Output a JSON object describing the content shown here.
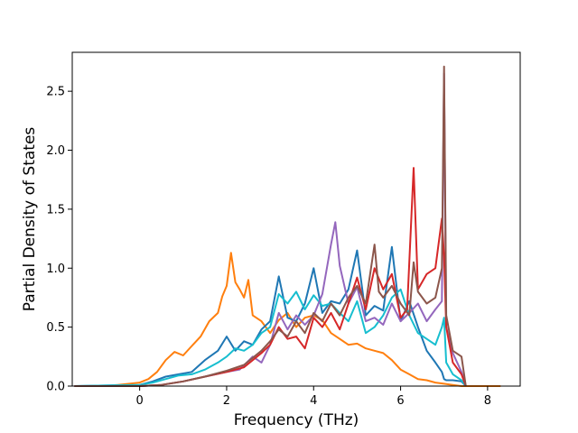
{
  "chart_data": {
    "type": "line",
    "xlabel": "Frequency (THz)",
    "ylabel": "Partial Density of States",
    "xlim": [
      -1.55,
      8.75
    ],
    "ylim": [
      0.0,
      2.83
    ],
    "xticks": [
      0,
      2,
      4,
      6,
      8
    ],
    "xtick_labels": [
      "0",
      "2",
      "4",
      "6",
      "8"
    ],
    "yticks": [
      0.0,
      0.5,
      1.0,
      1.5,
      2.0,
      2.5
    ],
    "ytick_labels": [
      "0.0",
      "0.5",
      "1.0",
      "1.5",
      "2.0",
      "2.5"
    ],
    "grid": false,
    "legend": "none",
    "series": [
      {
        "color": "#ff7f0e",
        "x": [
          -1.5,
          -0.8,
          -0.5,
          0.0,
          0.2,
          0.4,
          0.6,
          0.8,
          1.0,
          1.2,
          1.4,
          1.6,
          1.8,
          1.9,
          2.0,
          2.1,
          2.2,
          2.3,
          2.4,
          2.5,
          2.6,
          2.8,
          3.0,
          3.2,
          3.4,
          3.6,
          3.8,
          4.0,
          4.2,
          4.4,
          4.6,
          4.8,
          5.0,
          5.2,
          5.4,
          5.6,
          5.8,
          6.0,
          6.2,
          6.4,
          6.6,
          6.8,
          7.0,
          7.2,
          7.4,
          7.6,
          8.3
        ],
        "y": [
          0.0,
          0.0,
          0.01,
          0.03,
          0.06,
          0.12,
          0.22,
          0.29,
          0.26,
          0.34,
          0.42,
          0.55,
          0.62,
          0.76,
          0.85,
          1.13,
          0.88,
          0.82,
          0.75,
          0.9,
          0.6,
          0.55,
          0.45,
          0.56,
          0.62,
          0.5,
          0.58,
          0.6,
          0.56,
          0.45,
          0.4,
          0.35,
          0.36,
          0.32,
          0.3,
          0.28,
          0.22,
          0.14,
          0.1,
          0.06,
          0.05,
          0.03,
          0.02,
          0.01,
          0.0,
          0.0,
          0.0
        ]
      },
      {
        "color": "#1f77b4",
        "x": [
          -1.5,
          0.0,
          0.3,
          0.6,
          0.9,
          1.2,
          1.5,
          1.8,
          2.0,
          2.2,
          2.4,
          2.6,
          2.8,
          3.0,
          3.2,
          3.4,
          3.6,
          3.8,
          4.0,
          4.2,
          4.4,
          4.6,
          4.8,
          5.0,
          5.2,
          5.4,
          5.6,
          5.8,
          6.0,
          6.2,
          6.4,
          6.6,
          6.8,
          6.95,
          7.0,
          7.05,
          7.2,
          7.4,
          7.5
        ],
        "y": [
          0.0,
          0.01,
          0.04,
          0.08,
          0.1,
          0.12,
          0.22,
          0.3,
          0.42,
          0.3,
          0.38,
          0.35,
          0.48,
          0.55,
          0.93,
          0.58,
          0.55,
          0.7,
          1.0,
          0.62,
          0.72,
          0.7,
          0.82,
          1.15,
          0.6,
          0.68,
          0.64,
          1.18,
          0.55,
          0.72,
          0.5,
          0.3,
          0.2,
          0.12,
          0.06,
          0.05,
          0.05,
          0.04,
          0.0
        ]
      },
      {
        "color": "#17becf",
        "x": [
          -1.5,
          0.0,
          0.3,
          0.6,
          0.9,
          1.2,
          1.5,
          1.8,
          2.0,
          2.2,
          2.4,
          2.6,
          2.8,
          3.0,
          3.2,
          3.4,
          3.6,
          3.8,
          4.0,
          4.2,
          4.4,
          4.6,
          4.8,
          5.0,
          5.2,
          5.4,
          5.6,
          5.8,
          6.0,
          6.2,
          6.4,
          6.6,
          6.8,
          6.95,
          7.0,
          7.05,
          7.2,
          7.4,
          7.5
        ],
        "y": [
          0.0,
          0.01,
          0.03,
          0.06,
          0.09,
          0.1,
          0.14,
          0.2,
          0.25,
          0.32,
          0.3,
          0.35,
          0.45,
          0.5,
          0.78,
          0.7,
          0.8,
          0.65,
          0.77,
          0.68,
          0.7,
          0.62,
          0.55,
          0.72,
          0.45,
          0.5,
          0.6,
          0.75,
          0.82,
          0.6,
          0.45,
          0.4,
          0.35,
          0.5,
          0.58,
          0.2,
          0.1,
          0.05,
          0.0
        ]
      },
      {
        "color": "#9467bd",
        "x": [
          -1.5,
          0.0,
          0.5,
          1.0,
          1.5,
          2.0,
          2.3,
          2.6,
          2.8,
          3.0,
          3.2,
          3.4,
          3.6,
          3.8,
          4.0,
          4.2,
          4.4,
          4.5,
          4.6,
          4.8,
          5.0,
          5.2,
          5.4,
          5.6,
          5.8,
          6.0,
          6.2,
          6.4,
          6.6,
          6.8,
          6.95,
          7.0,
          7.05,
          7.2,
          7.4,
          7.5
        ],
        "y": [
          0.0,
          0.0,
          0.01,
          0.04,
          0.08,
          0.12,
          0.14,
          0.25,
          0.2,
          0.35,
          0.62,
          0.48,
          0.6,
          0.52,
          0.6,
          0.78,
          1.2,
          1.39,
          1.02,
          0.7,
          0.84,
          0.55,
          0.58,
          0.52,
          0.7,
          0.55,
          0.62,
          0.7,
          0.55,
          0.65,
          0.72,
          2.65,
          0.5,
          0.28,
          0.12,
          0.0
        ]
      },
      {
        "color": "#d62728",
        "x": [
          -1.5,
          0.0,
          0.5,
          1.0,
          1.5,
          2.0,
          2.4,
          2.8,
          3.0,
          3.2,
          3.4,
          3.6,
          3.8,
          4.0,
          4.2,
          4.4,
          4.6,
          4.8,
          5.0,
          5.2,
          5.4,
          5.6,
          5.8,
          6.0,
          6.15,
          6.3,
          6.4,
          6.6,
          6.8,
          6.95,
          7.0,
          7.05,
          7.2,
          7.4,
          7.5
        ],
        "y": [
          0.0,
          0.0,
          0.01,
          0.04,
          0.08,
          0.12,
          0.16,
          0.28,
          0.35,
          0.5,
          0.4,
          0.42,
          0.32,
          0.58,
          0.5,
          0.62,
          0.48,
          0.7,
          0.92,
          0.65,
          1.0,
          0.82,
          0.95,
          0.58,
          0.65,
          1.85,
          0.82,
          0.95,
          1.0,
          1.42,
          1.1,
          0.5,
          0.2,
          0.1,
          0.0
        ]
      },
      {
        "color": "#8c564b",
        "x": [
          -1.5,
          0.0,
          0.5,
          1.0,
          1.5,
          2.0,
          2.4,
          2.8,
          3.0,
          3.2,
          3.4,
          3.6,
          3.8,
          4.0,
          4.2,
          4.4,
          4.6,
          4.8,
          5.0,
          5.2,
          5.4,
          5.5,
          5.6,
          5.8,
          6.0,
          6.2,
          6.3,
          6.4,
          6.6,
          6.8,
          6.95,
          7.0,
          7.05,
          7.2,
          7.4,
          7.5
        ],
        "y": [
          0.0,
          0.0,
          0.01,
          0.04,
          0.08,
          0.13,
          0.18,
          0.3,
          0.38,
          0.48,
          0.42,
          0.55,
          0.45,
          0.62,
          0.55,
          0.7,
          0.6,
          0.75,
          0.85,
          0.7,
          1.2,
          0.8,
          0.75,
          0.85,
          0.7,
          0.6,
          1.05,
          0.8,
          0.7,
          0.75,
          1.0,
          2.71,
          0.6,
          0.3,
          0.25,
          0.0
        ]
      }
    ]
  }
}
